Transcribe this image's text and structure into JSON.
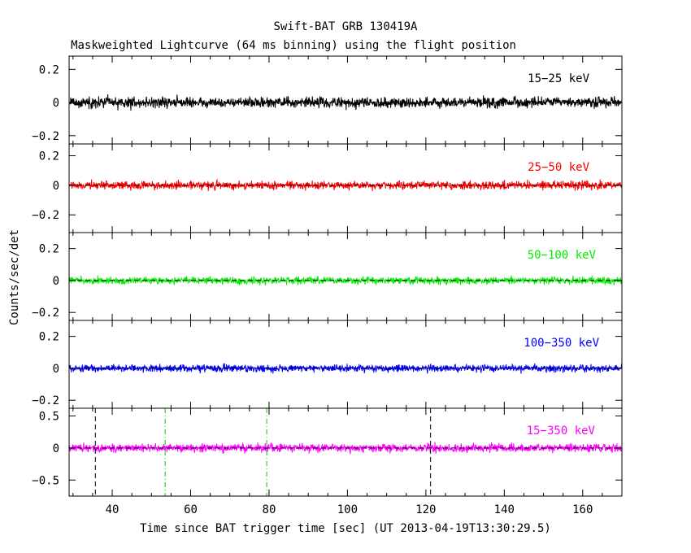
{
  "figure": {
    "title": "Swift-BAT GRB 130419A",
    "subtitle": "Maskweighted Lightcurve (64 ms binning) using the flight position",
    "ylabel": "Counts/sec/det",
    "xlabel": "Time since BAT trigger time [sec] (UT 2013-04-19T13:30:29.5)"
  },
  "chart_data": [
    {
      "type": "line",
      "series": [
        {
          "name": "15-25 keV",
          "color": "#000000",
          "noise_amplitude": 0.07
        }
      ],
      "xlim": [
        29,
        170
      ],
      "ylim": [
        -0.25,
        0.28
      ],
      "yticks": [
        -0.2,
        0,
        0.2
      ],
      "ytick_labels": [
        "−0.2",
        "0",
        "0.2"
      ],
      "zero_line": true
    },
    {
      "type": "line",
      "series": [
        {
          "name": "25-50 keV",
          "color": "#ff0000",
          "noise_amplitude": 0.06
        }
      ],
      "xlim": [
        29,
        170
      ],
      "ylim": [
        -0.32,
        0.28
      ],
      "yticks": [
        -0.2,
        0,
        0.2
      ],
      "ytick_labels": [
        "−0.2",
        "0",
        "0.2"
      ],
      "zero_line": true
    },
    {
      "type": "line",
      "series": [
        {
          "name": "50-100 keV",
          "color": "#00ee00",
          "noise_amplitude": 0.05
        }
      ],
      "xlim": [
        29,
        170
      ],
      "ylim": [
        -0.25,
        0.3
      ],
      "yticks": [
        -0.2,
        0,
        0.2
      ],
      "ytick_labels": [
        "−0.2",
        "0",
        "0.2"
      ],
      "zero_line": true
    },
    {
      "type": "line",
      "series": [
        {
          "name": "100-350 keV",
          "color": "#0000ff",
          "noise_amplitude": 0.05
        }
      ],
      "xlim": [
        29,
        170
      ],
      "ylim": [
        -0.25,
        0.3
      ],
      "yticks": [
        -0.2,
        0,
        0.2
      ],
      "ytick_labels": [
        "−0.2",
        "0",
        "0.2"
      ],
      "zero_line": true
    },
    {
      "type": "line",
      "series": [
        {
          "name": "15-350 keV",
          "color": "#ff00ff",
          "noise_amplitude": 0.14
        }
      ],
      "xlim": [
        29,
        170
      ],
      "ylim": [
        -0.75,
        0.62
      ],
      "yticks": [
        -0.5,
        0,
        0.5
      ],
      "ytick_labels": [
        "−0.5",
        "0",
        "0.5"
      ],
      "zero_line": true,
      "xticks": [
        40,
        60,
        80,
        100,
        120,
        140,
        160
      ],
      "xtick_labels": [
        "40",
        "60",
        "80",
        "100",
        "120",
        "140",
        "160"
      ],
      "vlines": [
        {
          "x": 35.7,
          "color": "#000000",
          "style": "dashed"
        },
        {
          "x": 53.5,
          "color": "#00cc00",
          "style": "dashdot"
        },
        {
          "x": 79.4,
          "color": "#00cc00",
          "style": "dashdot"
        },
        {
          "x": 121.2,
          "color": "#000000",
          "style": "dashed"
        }
      ]
    }
  ]
}
